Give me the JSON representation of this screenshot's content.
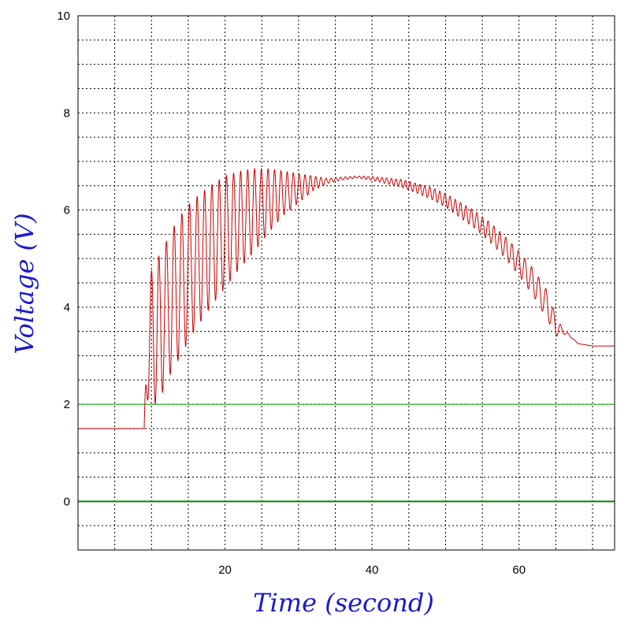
{
  "chart_data": {
    "type": "line",
    "title": "",
    "xlabel": "Time (second)",
    "ylabel": "Voltage (V)",
    "xlim": [
      0,
      73
    ],
    "ylim": [
      -1,
      10
    ],
    "x_ticks": [
      20,
      40,
      60
    ],
    "y_ticks": [
      0,
      2,
      4,
      6,
      8,
      10
    ],
    "x_grid_step": 5,
    "y_grid_step": 0.5,
    "grid": true,
    "colors": {
      "signal": "#cc0000",
      "reference": "#00aa00",
      "axis_label": "#1a1acc"
    },
    "reference_lines": [
      {
        "y": 0,
        "color": "#008800"
      },
      {
        "y": 2,
        "color": "#00aa00"
      }
    ],
    "series": [
      {
        "color": "#cc0000",
        "x": [
          0,
          9,
          9.5,
          10,
          10.7,
          11,
          12,
          13,
          14,
          15,
          16,
          18,
          20,
          22,
          24,
          26,
          28,
          30,
          32,
          34,
          36,
          38,
          40,
          42,
          44,
          46,
          48,
          50,
          52,
          54,
          56,
          58,
          60,
          62,
          64,
          65,
          66,
          67,
          68,
          70,
          73
        ],
        "y": [
          1.5,
          1.5,
          3.3,
          3.4,
          3.45,
          3.55,
          3.9,
          4.2,
          4.45,
          4.7,
          4.9,
          5.25,
          5.55,
          5.8,
          6.0,
          6.2,
          6.35,
          6.45,
          6.55,
          6.6,
          6.65,
          6.68,
          6.65,
          6.6,
          6.55,
          6.45,
          6.35,
          6.2,
          6.0,
          5.8,
          5.55,
          5.25,
          4.9,
          4.5,
          4.0,
          3.6,
          3.5,
          3.4,
          3.25,
          3.2,
          3.2
        ],
        "amplitude": [
          0,
          0,
          1.2,
          1.35,
          1.45,
          1.5,
          1.45,
          1.45,
          1.45,
          1.4,
          1.35,
          1.25,
          1.15,
          1.0,
          0.85,
          0.65,
          0.45,
          0.3,
          0.15,
          0.05,
          0.03,
          0.02,
          0.04,
          0.06,
          0.08,
          0.1,
          0.12,
          0.14,
          0.16,
          0.18,
          0.2,
          0.22,
          0.25,
          0.28,
          0.3,
          0.2,
          0.05,
          0.02,
          0,
          0,
          0
        ],
        "period": [
          1,
          1,
          1,
          1,
          1,
          1,
          1.05,
          1.05,
          1.05,
          1.05,
          1.02,
          1.0,
          0.98,
          0.96,
          0.93,
          0.9,
          0.85,
          0.8,
          0.72,
          0.68,
          0.64,
          0.62,
          0.62,
          0.63,
          0.64,
          0.66,
          0.68,
          0.7,
          0.72,
          0.75,
          0.78,
          0.82,
          0.88,
          0.95,
          1.0,
          1.0,
          1.0,
          1.0,
          1,
          1,
          1
        ]
      }
    ]
  }
}
